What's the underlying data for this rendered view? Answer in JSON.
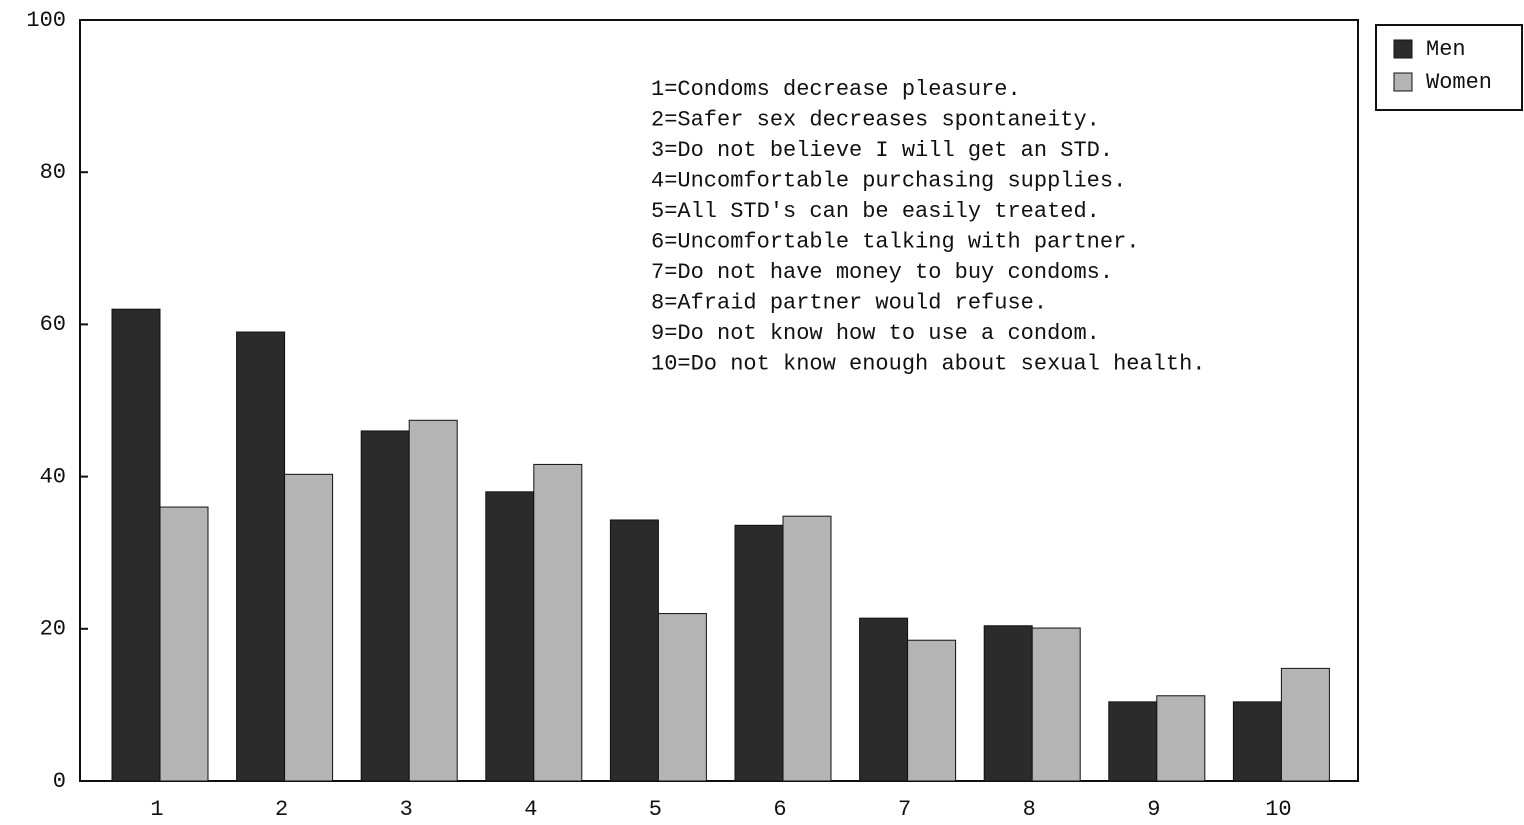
{
  "chart_data": {
    "type": "bar",
    "categories": [
      "1",
      "2",
      "3",
      "4",
      "5",
      "6",
      "7",
      "8",
      "9",
      "10"
    ],
    "series": [
      {
        "name": "Men",
        "color": "#2b2b2b",
        "values": [
          62,
          59,
          46,
          38,
          34.3,
          33.6,
          21.4,
          20.4,
          10.4,
          10.4
        ]
      },
      {
        "name": "Women",
        "color": "#b4b4b4",
        "values": [
          36,
          40.3,
          47.4,
          41.6,
          22,
          34.8,
          18.5,
          20.1,
          11.2,
          14.8
        ]
      }
    ],
    "ylim": [
      0,
      100
    ],
    "yticks": [
      0,
      20,
      40,
      60,
      80,
      100
    ],
    "annotations": [
      "1=Condoms decrease pleasure.",
      "2=Safer sex decreases spontaneity.",
      "3=Do not believe I will get an STD.",
      "4=Uncomfortable purchasing supplies.",
      "5=All STD's can be easily treated.",
      "6=Uncomfortable talking with partner.",
      "7=Do not have money to buy condoms.",
      "8=Afraid partner would refuse.",
      "9=Do not know how to use a condom.",
      "10=Do not know enough about sexual health."
    ],
    "legend": "upper right outside"
  }
}
